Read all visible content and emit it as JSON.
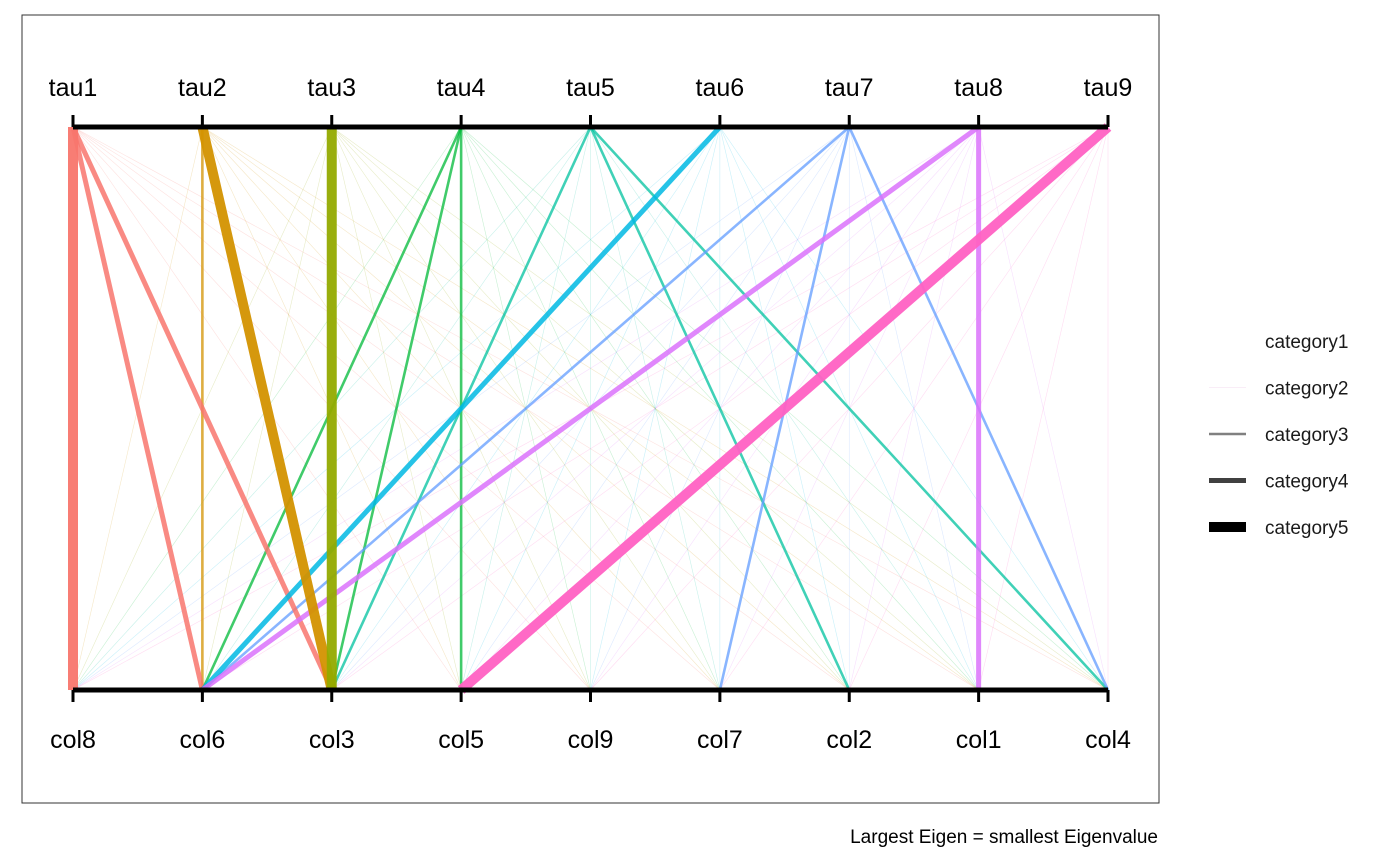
{
  "chart_data": {
    "type": "bipartite",
    "top_nodes": [
      "tau1",
      "tau2",
      "tau3",
      "tau4",
      "tau5",
      "tau6",
      "tau7",
      "tau8",
      "tau9"
    ],
    "bottom_nodes": [
      "col8",
      "col6",
      "col3",
      "col5",
      "col9",
      "col7",
      "col2",
      "col1",
      "col4"
    ],
    "node_colors": {
      "tau1": "#F8766D",
      "tau2": "#D39200",
      "tau3": "#93AA00",
      "tau4": "#00BA38",
      "tau5": "#00C19F",
      "tau6": "#00B9E3",
      "tau7": "#619CFF",
      "tau8": "#DB72FB",
      "tau9": "#FF61C3"
    },
    "strong_edges": [
      {
        "from": "tau1",
        "to": "col8",
        "category": "category5"
      },
      {
        "from": "tau1",
        "to": "col6",
        "category": "category4"
      },
      {
        "from": "tau1",
        "to": "col3",
        "category": "category4"
      },
      {
        "from": "tau2",
        "to": "col6",
        "category": "category3"
      },
      {
        "from": "tau2",
        "to": "col3",
        "category": "category5"
      },
      {
        "from": "tau3",
        "to": "col3",
        "category": "category5"
      },
      {
        "from": "tau4",
        "to": "col6",
        "category": "category3"
      },
      {
        "from": "tau4",
        "to": "col3",
        "category": "category3"
      },
      {
        "from": "tau4",
        "to": "col5",
        "category": "category3"
      },
      {
        "from": "tau5",
        "to": "col3",
        "category": "category3"
      },
      {
        "from": "tau5",
        "to": "col2",
        "category": "category3"
      },
      {
        "from": "tau5",
        "to": "col4",
        "category": "category3"
      },
      {
        "from": "tau6",
        "to": "col6",
        "category": "category4"
      },
      {
        "from": "tau7",
        "to": "col6",
        "category": "category3"
      },
      {
        "from": "tau7",
        "to": "col7",
        "category": "category3"
      },
      {
        "from": "tau7",
        "to": "col4",
        "category": "category3"
      },
      {
        "from": "tau8",
        "to": "col6",
        "category": "category4"
      },
      {
        "from": "tau8",
        "to": "col1",
        "category": "category4"
      },
      {
        "from": "tau9",
        "to": "col5",
        "category": "category5"
      }
    ],
    "background_edges": "all remaining tau-col pairs",
    "background_category": "category2",
    "legend": {
      "position": "right",
      "items": [
        {
          "label": "category1",
          "width": 0
        },
        {
          "label": "category2",
          "width": 0.3
        },
        {
          "label": "category3",
          "width": 2.5
        },
        {
          "label": "category4",
          "width": 5
        },
        {
          "label": "category5",
          "width": 10
        }
      ]
    },
    "caption": "Largest Eigen = smallest Eigenvalue"
  }
}
